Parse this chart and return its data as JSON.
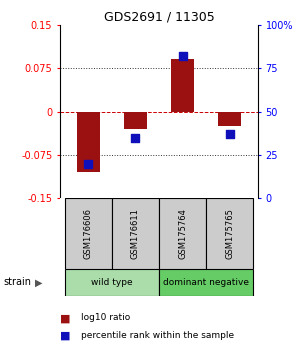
{
  "title": "GDS2691 / 11305",
  "samples": [
    "GSM176606",
    "GSM176611",
    "GSM175764",
    "GSM175765"
  ],
  "log10_ratio": [
    -0.105,
    -0.03,
    0.09,
    -0.025
  ],
  "percentile_rank": [
    20,
    35,
    82,
    37
  ],
  "ylim": [
    -0.15,
    0.15
  ],
  "yticks_left": [
    -0.15,
    -0.075,
    0,
    0.075,
    0.15
  ],
  "yticks_right": [
    0,
    25,
    50,
    75,
    100
  ],
  "ytick_labels_left": [
    "-0.15",
    "-0.075",
    "0",
    "0.075",
    "0.15"
  ],
  "ytick_labels_right": [
    "0",
    "25",
    "50",
    "75",
    "100%"
  ],
  "groups": [
    {
      "name": "wild type",
      "samples": [
        0,
        1
      ],
      "color": "#aaddaa"
    },
    {
      "name": "dominant negative",
      "samples": [
        2,
        3
      ],
      "color": "#66cc66"
    }
  ],
  "bar_color": "#9b1010",
  "dot_color": "#1010bb",
  "zero_line_color": "#cc0000",
  "dotted_line_color": "#333333",
  "sample_box_color": "#cccccc",
  "legend_red_label": "log10 ratio",
  "legend_blue_label": "percentile rank within the sample",
  "strain_label": "strain",
  "bar_width": 0.5,
  "dot_size": 35
}
